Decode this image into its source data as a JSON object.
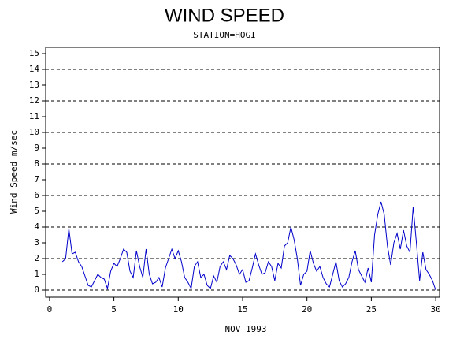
{
  "chart_data": {
    "type": "line",
    "title": "WIND SPEED",
    "subtitle": "STATION=HOGI",
    "x_label": "NOV 1993",
    "y_label": "Wind Speed m/sec",
    "xlim": [
      -0.3,
      30.3
    ],
    "xticks": [
      0,
      5,
      10,
      15,
      20,
      25,
      30
    ],
    "ylim": [
      -0.45,
      15.4
    ],
    "yticks": [
      0,
      1,
      2,
      3,
      4,
      5,
      6,
      7,
      8,
      9,
      10,
      11,
      12,
      13,
      14,
      15
    ],
    "grid": true,
    "grid_step": 2,
    "series": [
      {
        "color": "#0000cc",
        "x": [
          1.0,
          1.25,
          1.5,
          1.75,
          2.0,
          2.25,
          2.5,
          2.75,
          3.0,
          3.25,
          3.5,
          3.75,
          4.0,
          4.25,
          4.5,
          4.75,
          5.0,
          5.25,
          5.5,
          5.75,
          6.0,
          6.25,
          6.5,
          6.75,
          7.0,
          7.25,
          7.5,
          7.75,
          8.0,
          8.25,
          8.5,
          8.75,
          9.0,
          9.25,
          9.5,
          9.75,
          10.0,
          10.25,
          10.5,
          10.75,
          11.0,
          11.25,
          11.5,
          11.75,
          12.0,
          12.25,
          12.5,
          12.75,
          13.0,
          13.25,
          13.5,
          13.75,
          14.0,
          14.25,
          14.5,
          14.75,
          15.0,
          15.25,
          15.5,
          15.75,
          16.0,
          16.25,
          16.5,
          16.75,
          17.0,
          17.25,
          17.5,
          17.75,
          18.0,
          18.25,
          18.5,
          18.75,
          19.0,
          19.25,
          19.5,
          19.75,
          20.0,
          20.25,
          20.5,
          20.75,
          21.0,
          21.25,
          21.5,
          21.75,
          22.0,
          22.25,
          22.5,
          22.75,
          23.0,
          23.25,
          23.5,
          23.75,
          24.0,
          24.25,
          24.5,
          24.75,
          25.0,
          25.25,
          25.5,
          25.75,
          26.0,
          26.25,
          26.5,
          26.75,
          27.0,
          27.25,
          27.5,
          27.75,
          28.0,
          28.25,
          28.5,
          28.75,
          29.0,
          29.25,
          29.5,
          29.75,
          30.0
        ],
        "values": [
          1.8,
          2.0,
          3.9,
          2.3,
          2.4,
          1.8,
          1.5,
          0.9,
          0.3,
          0.2,
          0.6,
          1.0,
          0.8,
          0.7,
          0.1,
          1.2,
          1.7,
          1.5,
          2.0,
          2.6,
          2.4,
          1.2,
          0.8,
          2.5,
          1.5,
          0.8,
          2.6,
          1.0,
          0.4,
          0.5,
          0.8,
          0.2,
          1.4,
          2.0,
          2.6,
          2.0,
          2.5,
          1.8,
          0.8,
          0.5,
          0.1,
          1.5,
          1.8,
          0.8,
          1.0,
          0.3,
          0.1,
          0.9,
          0.5,
          1.5,
          1.8,
          1.3,
          2.2,
          2.0,
          1.6,
          1.0,
          1.3,
          0.5,
          0.6,
          1.4,
          2.3,
          1.6,
          1.0,
          1.1,
          1.8,
          1.5,
          0.6,
          1.7,
          1.4,
          2.8,
          3.0,
          4.0,
          3.2,
          2.0,
          0.3,
          1.0,
          1.2,
          2.5,
          1.7,
          1.2,
          1.5,
          0.8,
          0.4,
          0.2,
          1.0,
          1.8,
          0.6,
          0.2,
          0.4,
          0.8,
          1.8,
          2.5,
          1.3,
          0.9,
          0.5,
          1.4,
          0.5,
          3.5,
          4.8,
          5.6,
          4.8,
          2.8,
          1.6,
          3.0,
          3.6,
          2.6,
          3.8,
          2.8,
          2.4,
          5.3,
          3.0,
          0.6,
          2.4,
          1.3,
          1.0,
          0.6,
          0.0
        ]
      }
    ]
  }
}
